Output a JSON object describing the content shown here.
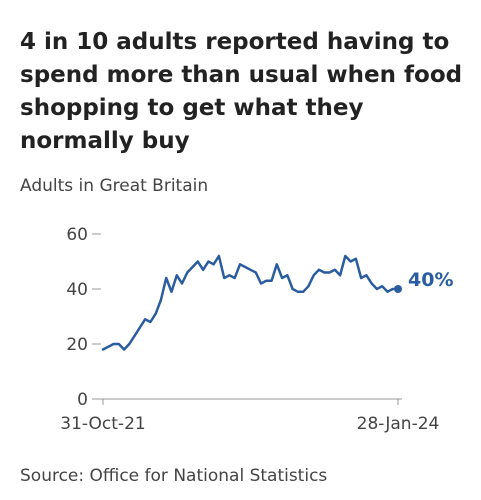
{
  "title": "4 in 10 adults reported having to spend more than usual when food shopping to get what they normally buy",
  "subtitle": "Adults in Great Britain",
  "source": "Source: Office for National Statistics",
  "colors": {
    "line": "#2a5d9f",
    "axis": "#999999",
    "text": "#444444"
  },
  "chart_data": {
    "type": "line",
    "ylim": [
      0,
      60
    ],
    "yticks": [
      0,
      20,
      40,
      60
    ],
    "x_tick_labels": [
      "31-Oct-21",
      "28-Jan-24"
    ],
    "end_label": "40%",
    "grid": false,
    "series": [
      {
        "values": [
          18,
          19,
          20,
          20,
          18,
          20,
          23,
          26,
          29,
          28,
          31,
          36,
          44,
          39,
          45,
          42,
          46,
          48,
          50,
          47,
          50,
          49,
          52,
          44,
          45,
          44,
          49,
          48,
          47,
          46,
          42,
          43,
          43,
          49,
          44,
          45,
          40,
          39,
          39,
          41,
          45,
          47,
          46,
          46,
          47,
          45,
          52,
          50,
          51,
          44,
          45,
          42,
          40,
          41,
          39,
          40,
          40
        ]
      }
    ]
  }
}
